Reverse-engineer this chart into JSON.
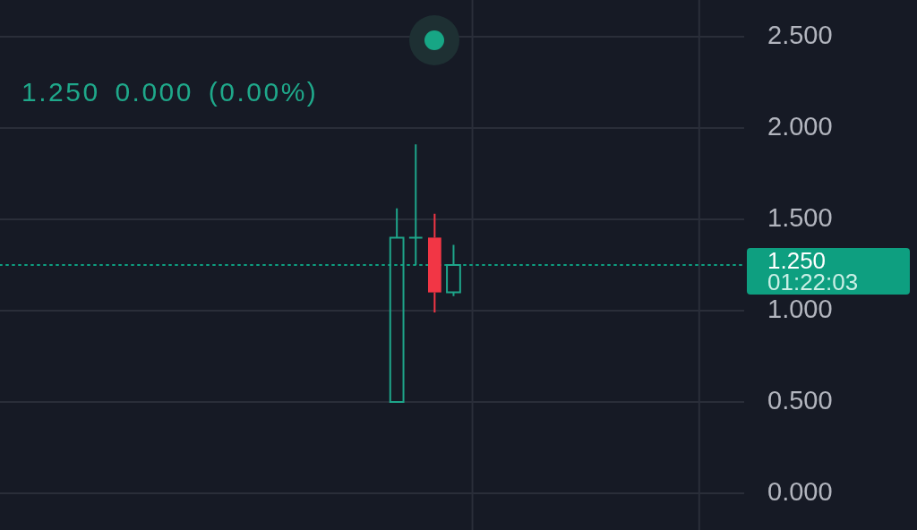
{
  "chart_data": {
    "type": "candlestick",
    "subtitle": "1.250 0.000 (0.00%)",
    "categories": [
      null,
      null,
      null,
      null,
      null,
      null,
      null,
      null,
      null,
      null,
      null,
      null,
      null,
      null,
      null,
      null,
      null,
      null,
      null,
      null,
      null,
      null,
      null,
      null,
      null,
      null,
      null,
      null,
      null,
      null,
      null,
      null,
      null,
      null,
      null,
      null,
      null,
      null,
      null,
      null
    ],
    "ohlc": [
      null,
      null,
      null,
      null,
      null,
      null,
      null,
      null,
      null,
      null,
      null,
      null,
      null,
      null,
      null,
      null,
      null,
      null,
      null,
      null,
      null,
      [
        0.5,
        1.56,
        0.5,
        1.4
      ],
      [
        1.4,
        1.91,
        1.25,
        1.4
      ],
      [
        1.4,
        1.53,
        0.99,
        1.1
      ],
      [
        1.1,
        1.36,
        1.08,
        1.25
      ],
      null,
      null,
      null,
      null,
      null,
      null,
      null,
      null,
      null,
      null,
      null,
      null,
      null,
      null,
      null
    ],
    "colors": [
      null,
      null,
      null,
      null,
      null,
      null,
      null,
      null,
      null,
      null,
      null,
      null,
      null,
      null,
      null,
      null,
      null,
      null,
      null,
      null,
      null,
      "#1ea58a",
      "#1ea58a",
      "#f23645",
      "#1ea58a",
      null,
      null,
      null,
      null,
      null,
      null,
      null,
      null,
      null,
      null,
      null,
      null,
      null,
      null,
      null
    ],
    "ylim": [
      -0.2,
      2.7
    ],
    "yticks": [
      {
        "value": 0,
        "label": "0.000"
      },
      {
        "value": 0.5,
        "label": "0.500"
      },
      {
        "value": 1,
        "label": "1.000"
      },
      {
        "value": 1.5,
        "label": "1.500"
      },
      {
        "value": 2,
        "label": "2.000"
      },
      {
        "value": 2.5,
        "label": "2.500"
      }
    ],
    "ref_lines": [
      {
        "axis": "y",
        "value": 1.25,
        "label": "1.250\n01:22:03",
        "color": "#0e9f80",
        "line_style": "dotted"
      }
    ],
    "grid": true,
    "tick_labels": "y"
  }
}
